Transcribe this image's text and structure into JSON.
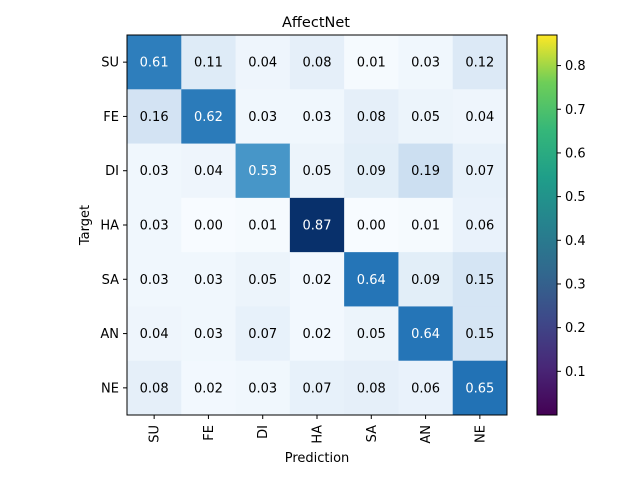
{
  "chart_data": {
    "type": "heatmap",
    "title": "AffectNet",
    "xlabel": "Prediction",
    "ylabel": "Target",
    "x_categories": [
      "SU",
      "FE",
      "DI",
      "HA",
      "SA",
      "AN",
      "NE"
    ],
    "y_categories": [
      "SU",
      "FE",
      "DI",
      "HA",
      "SA",
      "AN",
      "NE"
    ],
    "matrix": [
      [
        0.61,
        0.11,
        0.04,
        0.08,
        0.01,
        0.03,
        0.12
      ],
      [
        0.16,
        0.62,
        0.03,
        0.03,
        0.08,
        0.05,
        0.04
      ],
      [
        0.03,
        0.04,
        0.53,
        0.05,
        0.09,
        0.19,
        0.07
      ],
      [
        0.03,
        0.0,
        0.01,
        0.87,
        0.0,
        0.01,
        0.06
      ],
      [
        0.03,
        0.03,
        0.05,
        0.02,
        0.64,
        0.09,
        0.15
      ],
      [
        0.04,
        0.03,
        0.07,
        0.02,
        0.05,
        0.64,
        0.15
      ],
      [
        0.08,
        0.02,
        0.03,
        0.07,
        0.08,
        0.06,
        0.65
      ]
    ],
    "cell_colormap": "Blues",
    "colorbar": {
      "colormap": "viridis",
      "range": [
        0.0,
        0.87
      ],
      "ticks": [
        "0.1",
        "0.2",
        "0.3",
        "0.4",
        "0.5",
        "0.6",
        "0.7",
        "0.8"
      ]
    },
    "grid": false
  }
}
